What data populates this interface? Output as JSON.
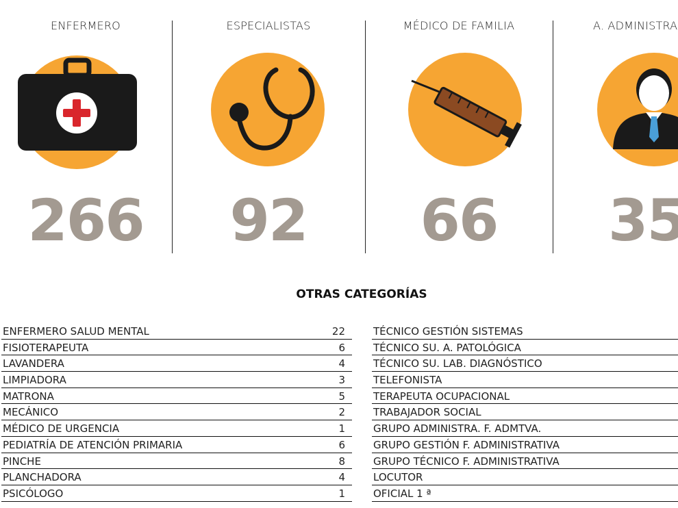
{
  "categories": [
    {
      "label": "ENFERMERO",
      "value": "266",
      "icon": "first-aid-kit-icon"
    },
    {
      "label": "ESPECIALISTAS",
      "value": "92",
      "icon": "stethoscope-icon"
    },
    {
      "label": "MÉDICO DE FAMILIA",
      "value": "66",
      "icon": "syringe-icon"
    },
    {
      "label": "A. ADMINISTRA",
      "value": "35",
      "icon": "administrative-person-icon"
    }
  ],
  "colors": {
    "circle": "#f6a533",
    "number": "#a39a91",
    "icon_dark": "#1a1a1a",
    "cross": "#d9262c"
  },
  "section_title": "OTRAS CATEGORÍAS",
  "left_list": [
    {
      "name": "ENFERMERO SALUD MENTAL",
      "value": "22"
    },
    {
      "name": "FISIOTERAPEUTA",
      "value": "6"
    },
    {
      "name": "LAVANDERA",
      "value": "4"
    },
    {
      "name": "LIMPIADORA",
      "value": "3"
    },
    {
      "name": "MATRONA",
      "value": "5"
    },
    {
      "name": "MECÁNICO",
      "value": "2"
    },
    {
      "name": "MÉDICO DE URGENCIA",
      "value": "1"
    },
    {
      "name": "PEDIATRÍA DE ATENCIÓN PRIMARIA",
      "value": "6"
    },
    {
      "name": "PINCHE",
      "value": "8"
    },
    {
      "name": "PLANCHADORA",
      "value": "4"
    },
    {
      "name": "PSICÓLOGO",
      "value": "1"
    }
  ],
  "right_list": [
    {
      "name": "TÉCNICO GESTIÓN SISTEMAS"
    },
    {
      "name": "TÉCNICO SU. A. PATOLÓGICA"
    },
    {
      "name": "TÉCNICO SU. LAB. DIAGNÓSTICO"
    },
    {
      "name": "TELEFONISTA"
    },
    {
      "name": "TERAPEUTA OCUPACIONAL"
    },
    {
      "name": "TRABAJADOR SOCIAL"
    },
    {
      "name": "GRUPO ADMINISTRA. F. ADMTVA."
    },
    {
      "name": "GRUPO GESTIÓN F. ADMINISTRATIVA"
    },
    {
      "name": "GRUPO  TÉCNICO F. ADMINISTRATIVA"
    },
    {
      "name": "LOCUTOR"
    },
    {
      "name": "OFICIAL 1 ª"
    }
  ]
}
